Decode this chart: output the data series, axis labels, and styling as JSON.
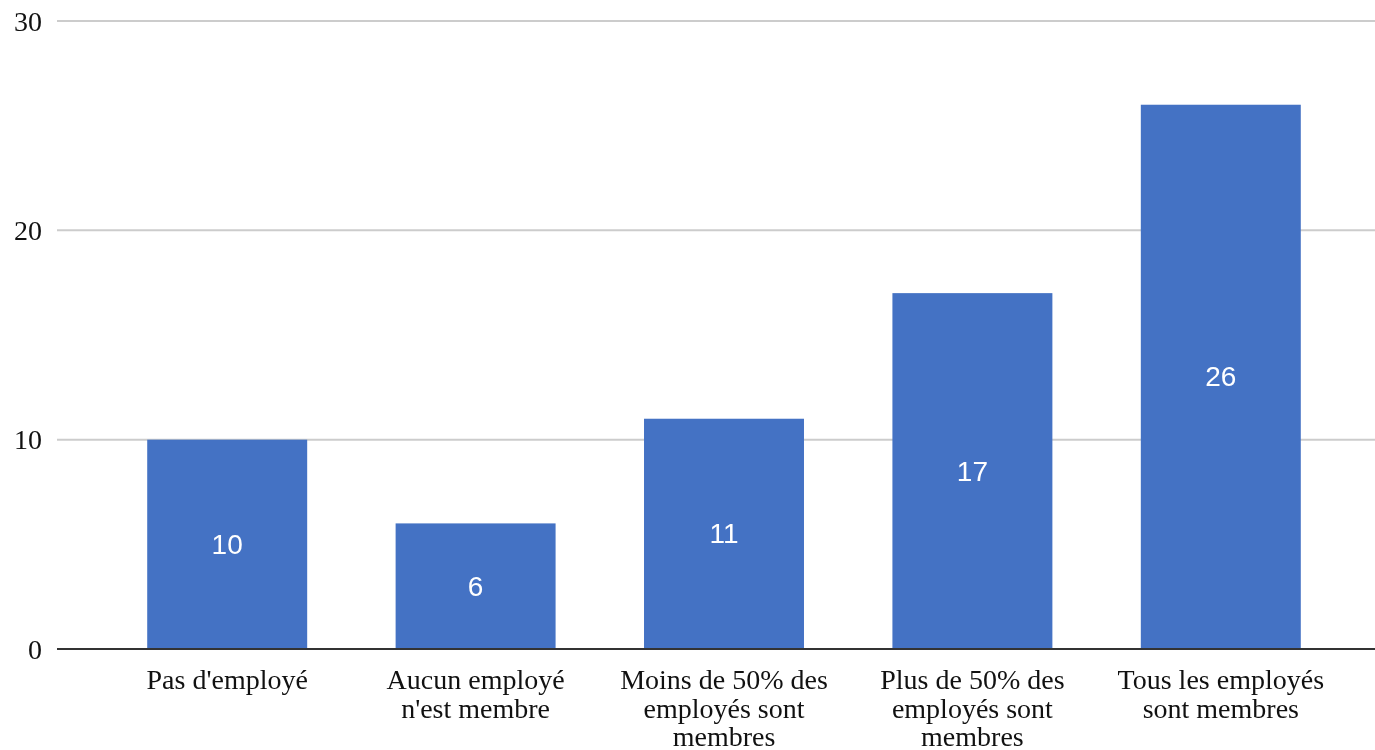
{
  "chart_data": {
    "type": "bar",
    "categories": [
      "Pas d'employé",
      "Aucun employé n'est membre",
      "Moins de 50% des employés sont membres",
      "Plus de 50% des employés sont membres",
      "Tous les employés sont membres"
    ],
    "values": [
      10,
      6,
      11,
      17,
      26
    ],
    "color": "#4472c4",
    "ylim": [
      0,
      30
    ],
    "yticks": [
      0,
      10,
      20,
      30
    ],
    "grid": "y",
    "data_labels": true
  }
}
